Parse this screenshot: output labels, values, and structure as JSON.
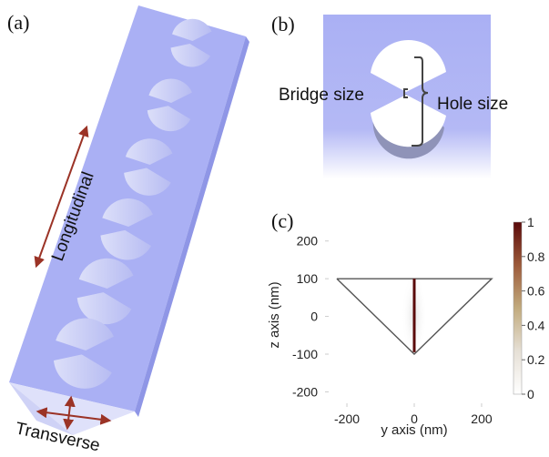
{
  "panels": {
    "a": {
      "label": "(a)",
      "longitudinal_label": "Longitudinal",
      "transverse_label": "Transverse",
      "hole_pairs": 6
    },
    "b": {
      "label": "(b)",
      "bridge_label": "Bridge size",
      "hole_label": "Hole size"
    },
    "c": {
      "label": "(c)"
    }
  },
  "colors": {
    "waveguide": "#aab0f4",
    "arrow": "#9b3326",
    "colormap_high": "#5a0a0a",
    "colormap_low": "#ffffff"
  },
  "chart_data": {
    "type": "heatmap",
    "title": "",
    "xlabel": "y axis (nm)",
    "ylabel": "z axis (nm)",
    "xlim": [
      -265,
      265
    ],
    "ylim": [
      -240,
      250
    ],
    "xticks": [
      -200,
      0,
      200
    ],
    "yticks": [
      200,
      100,
      0,
      -100,
      -200
    ],
    "colorbar": {
      "range": [
        0,
        1
      ],
      "ticks": [
        0,
        0.2,
        0.4,
        0.6,
        0.8,
        1
      ]
    },
    "cross_section_outline": {
      "y": [
        -230,
        230,
        0,
        -230
      ],
      "z": [
        100,
        100,
        -100,
        100
      ]
    },
    "field_hotspot": {
      "y": 0,
      "z_range": [
        -95,
        100
      ],
      "peak_value": 1
    },
    "grid": false
  }
}
